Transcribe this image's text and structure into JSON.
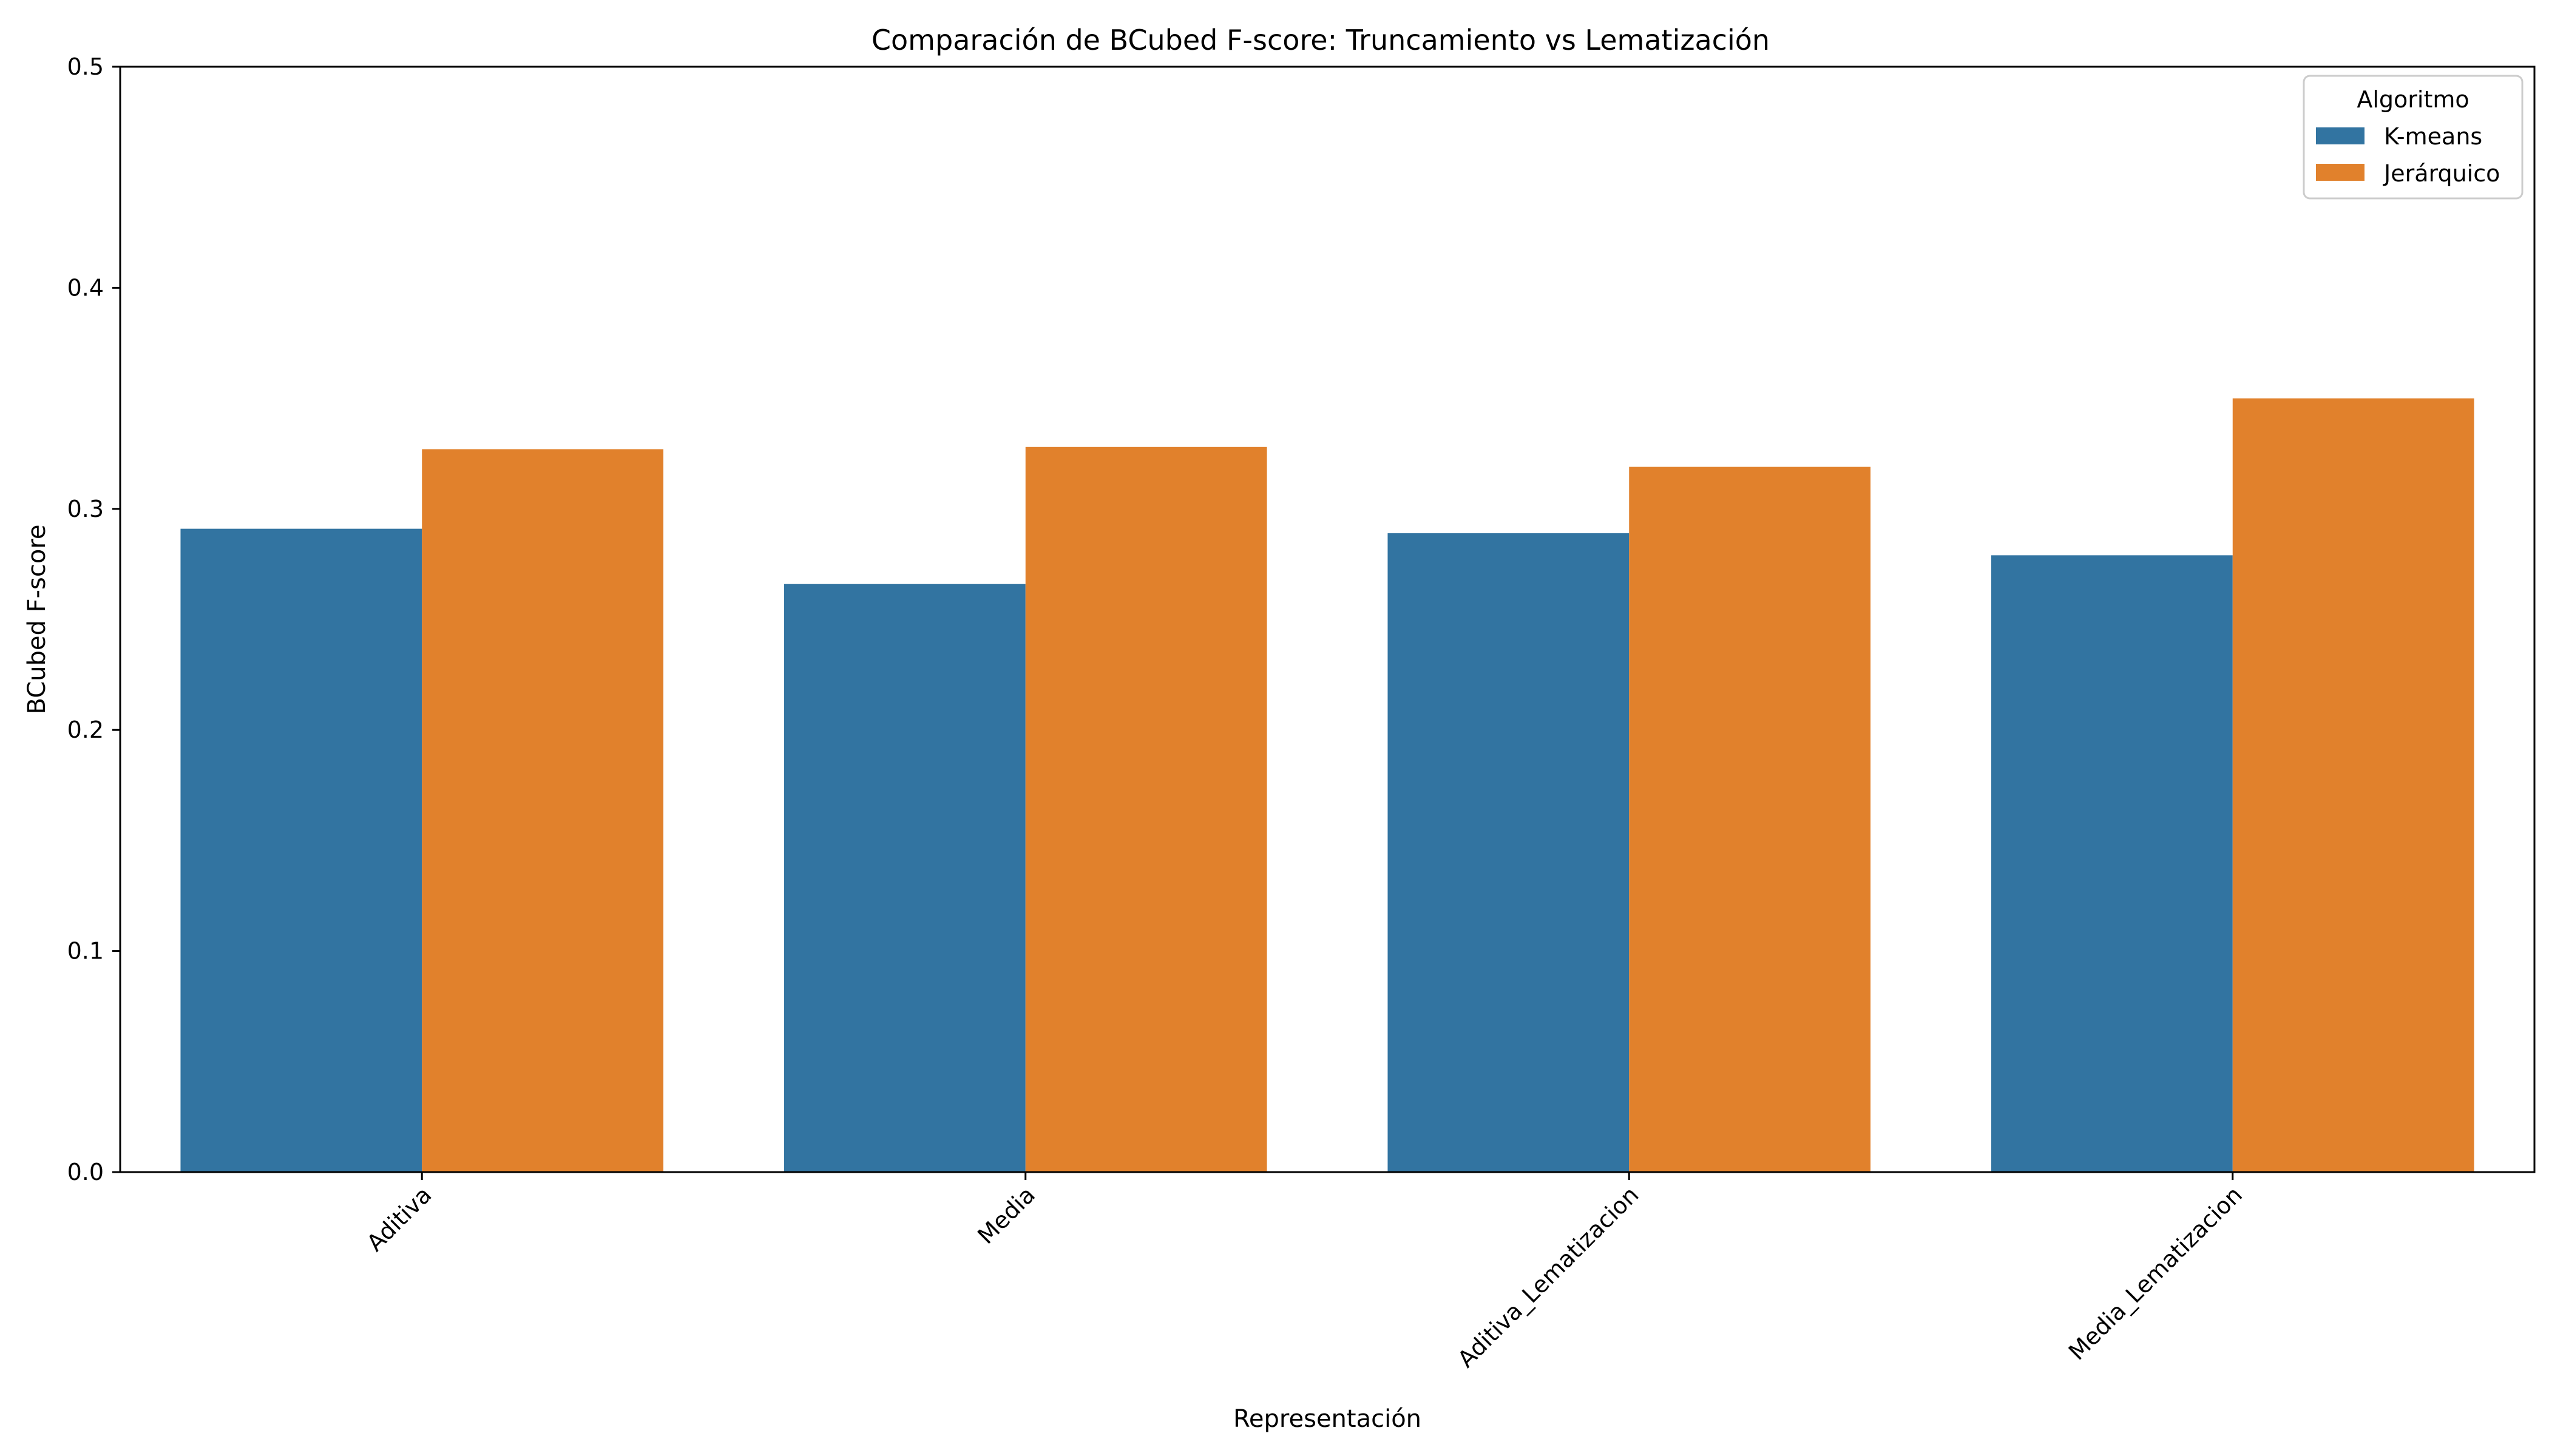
{
  "chart_data": {
    "type": "bar",
    "title": "Comparación de BCubed F-score: Truncamiento vs Lematización",
    "xlabel": "Representación",
    "ylabel": "BCubed F-score",
    "categories": [
      "Aditiva",
      "Media",
      "Aditiva_Lematizacion",
      "Media_Lematizacion"
    ],
    "series": [
      {
        "name": "K-means",
        "color": "#3274a1",
        "values": [
          0.291,
          0.266,
          0.289,
          0.279
        ]
      },
      {
        "name": "Jerárquico",
        "color": "#e1812c",
        "values": [
          0.327,
          0.328,
          0.319,
          0.35
        ]
      }
    ],
    "ylim": [
      0,
      0.5
    ],
    "yticks": [
      "0.0",
      "0.1",
      "0.2",
      "0.3",
      "0.4",
      "0.5"
    ],
    "legend": {
      "title": "Algoritmo",
      "placement": "top-right"
    },
    "grid": false
  }
}
